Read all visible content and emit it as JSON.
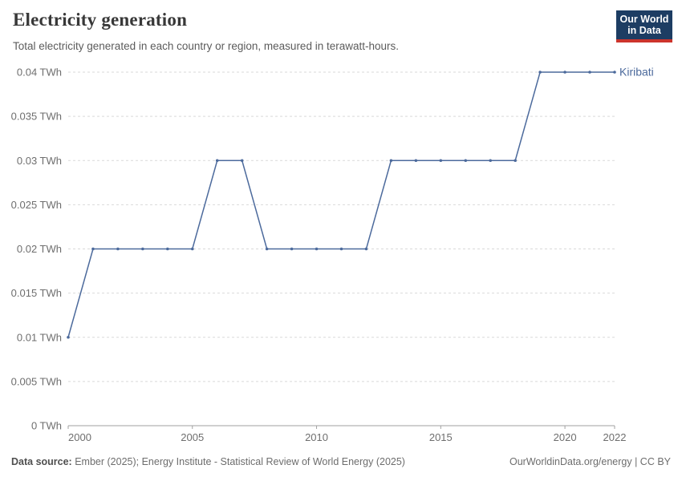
{
  "header": {
    "title": "Electricity generation",
    "subtitle": "Total electricity generated in each country or region, measured in terawatt-hours."
  },
  "logo": {
    "line1": "Our World",
    "line2": "in Data"
  },
  "footer": {
    "source_label": "Data source:",
    "source_text": " Ember (2025); Energy Institute - Statistical Review of World Energy (2025)",
    "right_text": "OurWorldinData.org/energy | CC BY"
  },
  "colors": {
    "line": "#4C6A9C",
    "grid": "#d9d9d9",
    "axis": "#a1a1a1",
    "tick_text": "#6e6e6e",
    "logo_bg": "#1d3d63",
    "logo_accent": "#cc342c"
  },
  "chart_data": {
    "type": "line",
    "title": "Electricity generation",
    "unit": "TWh",
    "x": [
      2000,
      2001,
      2002,
      2003,
      2004,
      2005,
      2006,
      2007,
      2008,
      2009,
      2010,
      2011,
      2012,
      2013,
      2014,
      2015,
      2016,
      2017,
      2018,
      2019,
      2020,
      2021,
      2022
    ],
    "series": [
      {
        "name": "Kiribati",
        "color": "#4C6A9C",
        "values": [
          0.01,
          0.02,
          0.02,
          0.02,
          0.02,
          0.02,
          0.03,
          0.03,
          0.02,
          0.02,
          0.02,
          0.02,
          0.02,
          0.03,
          0.03,
          0.03,
          0.03,
          0.03,
          0.03,
          0.04,
          0.04,
          0.04,
          0.04
        ]
      }
    ],
    "xlim": [
      2000,
      2022
    ],
    "ylim": [
      0,
      0.04
    ],
    "xticks": [
      2000,
      2005,
      2010,
      2015,
      2020,
      2022
    ],
    "yticks": [
      0,
      0.005,
      0.01,
      0.015,
      0.02,
      0.025,
      0.03,
      0.035,
      0.04
    ],
    "ytick_labels": [
      "0 TWh",
      "0.005 TWh",
      "0.01 TWh",
      "0.015 TWh",
      "0.02 TWh",
      "0.025 TWh",
      "0.03 TWh",
      "0.035 TWh",
      "0.04 TWh"
    ],
    "grid": "horizontal-dashed",
    "legend": "line-end-label"
  }
}
